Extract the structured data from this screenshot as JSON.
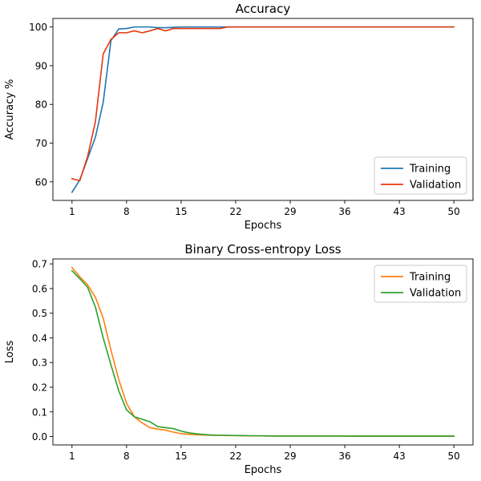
{
  "chart_data": [
    {
      "type": "line",
      "title": "Accuracy",
      "xlabel": "Epochs",
      "ylabel": "Accuracy %",
      "xlim": [
        -1.45,
        52.45
      ],
      "ylim": [
        55.2,
        102.2
      ],
      "xticks": [
        1,
        8,
        15,
        22,
        29,
        36,
        43,
        50
      ],
      "yticks": [
        60,
        70,
        80,
        90,
        100
      ],
      "x": [
        1,
        2,
        3,
        4,
        5,
        6,
        7,
        8,
        9,
        10,
        11,
        12,
        13,
        14,
        15,
        16,
        17,
        18,
        19,
        20,
        21,
        22,
        23,
        24,
        25,
        26,
        27,
        28,
        29,
        30,
        31,
        32,
        33,
        34,
        35,
        36,
        37,
        38,
        39,
        40,
        41,
        42,
        43,
        44,
        45,
        46,
        47,
        48,
        49,
        50
      ],
      "series": [
        {
          "name": "Training",
          "color": "#1f77b4",
          "values": [
            57.3,
            60.5,
            66.0,
            71.5,
            80.5,
            96.5,
            99.5,
            99.6,
            100,
            100,
            100,
            99.8,
            99.8,
            99.9,
            100,
            100,
            100,
            100,
            100,
            100,
            100,
            100,
            100,
            100,
            100,
            100,
            100,
            100,
            100,
            100,
            100,
            100,
            100,
            100,
            100,
            100,
            100,
            100,
            100,
            100,
            100,
            100,
            100,
            100,
            100,
            100,
            100,
            100,
            100,
            100
          ]
        },
        {
          "name": "Validation",
          "color": "#e8360e",
          "values": [
            60.8,
            60.3,
            66.5,
            75.5,
            93.0,
            96.8,
            98.5,
            98.5,
            99.0,
            98.5,
            99.0,
            99.6,
            99.0,
            99.6,
            99.6,
            99.6,
            99.6,
            99.6,
            99.6,
            99.6,
            100,
            100,
            100,
            100,
            100,
            100,
            100,
            100,
            100,
            100,
            100,
            100,
            100,
            100,
            100,
            100,
            100,
            100,
            100,
            100,
            100,
            100,
            100,
            100,
            100,
            100,
            100,
            100,
            100,
            100
          ]
        }
      ],
      "legend": "lower-right"
    },
    {
      "type": "line",
      "title": "Binary Cross-entropy Loss",
      "xlabel": "Epochs",
      "ylabel": "Loss",
      "xlim": [
        -1.45,
        52.45
      ],
      "ylim": [
        -0.034,
        0.72
      ],
      "xticks": [
        1,
        8,
        15,
        22,
        29,
        36,
        43,
        50
      ],
      "yticks": [
        0.0,
        0.1,
        0.2,
        0.3,
        0.4,
        0.5,
        0.6,
        0.7
      ],
      "ytick_labels": [
        "0.0",
        "0.1",
        "0.2",
        "0.3",
        "0.4",
        "0.5",
        "0.6",
        "0.7"
      ],
      "x": [
        1,
        2,
        3,
        4,
        5,
        6,
        7,
        8,
        9,
        10,
        11,
        12,
        13,
        14,
        15,
        16,
        17,
        18,
        19,
        20,
        21,
        22,
        23,
        24,
        25,
        26,
        27,
        28,
        29,
        30,
        31,
        32,
        33,
        34,
        35,
        36,
        37,
        38,
        39,
        40,
        41,
        42,
        43,
        44,
        45,
        46,
        47,
        48,
        49,
        50
      ],
      "series": [
        {
          "name": "Training",
          "color": "#ff7f0e",
          "values": [
            0.685,
            0.648,
            0.615,
            0.565,
            0.48,
            0.35,
            0.23,
            0.135,
            0.08,
            0.055,
            0.036,
            0.03,
            0.026,
            0.018,
            0.012,
            0.009,
            0.007,
            0.006,
            0.005,
            0.005,
            0.004,
            0.004,
            0.003,
            0.003,
            0.003,
            0.002,
            0.002,
            0.002,
            0.002,
            0.002,
            0.002,
            0.002,
            0.002,
            0.002,
            0.002,
            0.002,
            0.001,
            0.001,
            0.001,
            0.001,
            0.001,
            0.001,
            0.001,
            0.001,
            0.001,
            0.001,
            0.001,
            0.001,
            0.001,
            0.001
          ]
        },
        {
          "name": "Validation",
          "color": "#2ca02c",
          "values": [
            0.672,
            0.64,
            0.605,
            0.525,
            0.4,
            0.29,
            0.185,
            0.108,
            0.08,
            0.07,
            0.06,
            0.04,
            0.036,
            0.032,
            0.022,
            0.015,
            0.011,
            0.008,
            0.006,
            0.005,
            0.005,
            0.004,
            0.004,
            0.003,
            0.003,
            0.003,
            0.002,
            0.002,
            0.002,
            0.002,
            0.002,
            0.002,
            0.002,
            0.002,
            0.002,
            0.002,
            0.002,
            0.002,
            0.002,
            0.002,
            0.002,
            0.002,
            0.002,
            0.002,
            0.002,
            0.002,
            0.002,
            0.002,
            0.002,
            0.002
          ]
        }
      ],
      "legend": "upper-right"
    }
  ]
}
